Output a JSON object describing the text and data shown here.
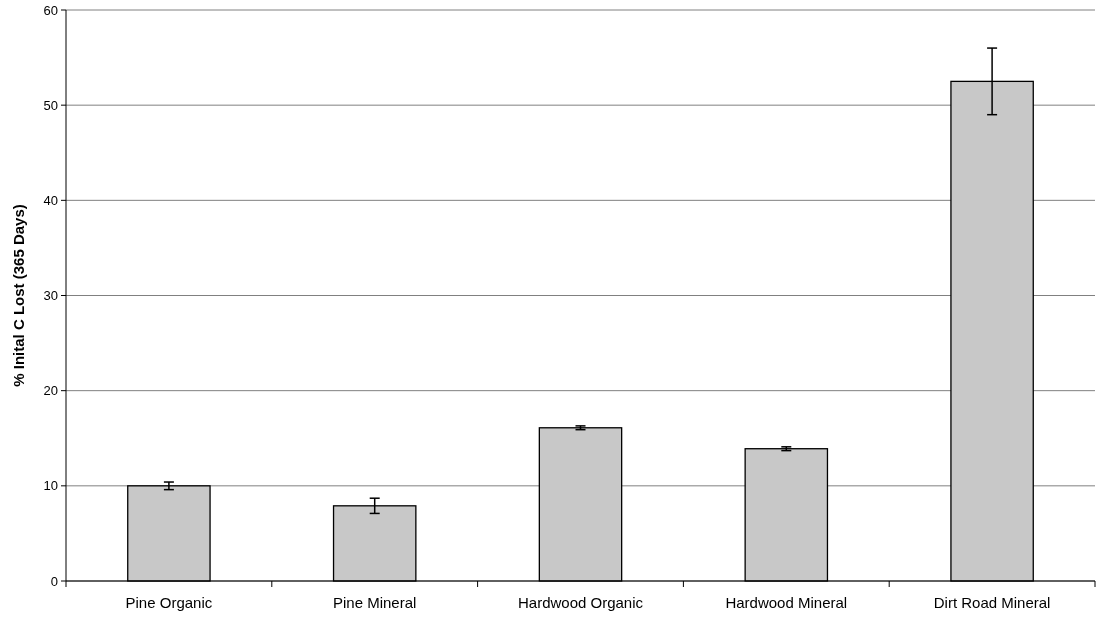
{
  "chart_data": {
    "type": "bar",
    "ylabel": "% Inital C Lost (365 Days)",
    "categories": [
      "Pine Organic",
      "Pine Mineral",
      "Hardwood Organic",
      "Hardwood Mineral",
      "Dirt Road Mineral"
    ],
    "values": [
      10,
      7.9,
      16.1,
      13.9,
      52.5
    ],
    "errors": [
      0.4,
      0.8,
      0.2,
      0.2,
      3.5
    ],
    "color": "#c8c8c8",
    "ylim": [
      0,
      60
    ],
    "yticks": [
      0,
      10,
      20,
      30,
      40,
      50,
      60
    ],
    "grid": "y"
  }
}
